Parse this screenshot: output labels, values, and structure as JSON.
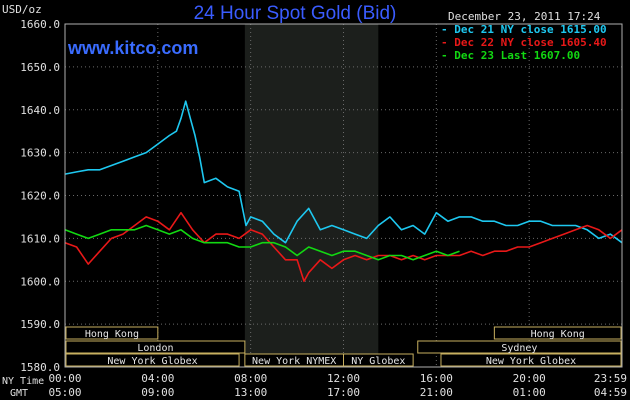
{
  "chart_data": {
    "type": "line",
    "title": "24 Hour Spot Gold (Bid)",
    "ylabel": "USD/oz",
    "date_label": "December 23, 2011 17:24",
    "brand": "www.kitco.com",
    "ylim": [
      1580,
      1660
    ],
    "yticks": [
      "1660.0",
      "1650.0",
      "1640.0",
      "1630.0",
      "1620.0",
      "1610.0",
      "1600.0",
      "1590.0",
      "1580.0"
    ],
    "ytick_values": [
      1660,
      1650,
      1640,
      1630,
      1620,
      1610,
      1600,
      1590,
      1580
    ],
    "xlim": [
      0,
      24
    ],
    "x_ny_label": "NY Time",
    "x_gmt_label": "GMT",
    "x_ny_ticks": [
      "00:00",
      "04:00",
      "08:00",
      "12:00",
      "16:00",
      "20:00",
      "23:59"
    ],
    "x_gmt_ticks": [
      "05:00",
      "09:00",
      "13:00",
      "17:00",
      "21:00",
      "01:00",
      "04:59"
    ],
    "x_tick_hours": [
      0,
      4,
      8,
      12,
      16,
      20,
      24
    ],
    "nymex_session": [
      7.75,
      13.5
    ],
    "markets": [
      {
        "label": "Hong Kong",
        "row": 1,
        "start": 0,
        "end": 4
      },
      {
        "label": "London",
        "row": 2,
        "start": 0,
        "end": 7.75
      },
      {
        "label": "New York Globex",
        "row": 3,
        "start": 0,
        "end": 7.5
      },
      {
        "label": "New York NYMEX",
        "row": 3,
        "start": 7.75,
        "end": 12
      },
      {
        "label": "NY Globex",
        "row": 3,
        "start": 12,
        "end": 15
      },
      {
        "label": "Sydney",
        "row": 2,
        "start": 15.2,
        "end": 24
      },
      {
        "label": "Hong Kong",
        "row": 1,
        "start": 18.5,
        "end": 24
      },
      {
        "label": "New York Globex",
        "row": 3,
        "start": 16.2,
        "end": 24
      }
    ],
    "series": [
      {
        "name": "Dec 21 NY close 1615.00",
        "color": "#1ec8f0",
        "x": [
          0,
          0.5,
          1,
          1.5,
          2,
          2.5,
          3,
          3.5,
          4,
          4.5,
          4.8,
          5,
          5.2,
          5.4,
          5.6,
          5.8,
          6,
          6.5,
          7,
          7.5,
          7.8,
          8,
          8.5,
          9,
          9.5,
          10,
          10.5,
          11,
          11.5,
          12,
          12.5,
          13,
          13.5,
          14,
          14.5,
          15,
          15.5,
          16,
          16.5,
          17,
          17.5,
          18,
          18.5,
          19,
          19.5,
          20,
          20.5,
          21,
          21.5,
          22,
          22.5,
          23,
          23.5,
          24
        ],
        "values": [
          1625,
          1625.5,
          1626,
          1626,
          1627,
          1628,
          1629,
          1630,
          1632,
          1634,
          1635,
          1638,
          1642,
          1638,
          1634,
          1629,
          1623,
          1624,
          1622,
          1621,
          1613,
          1615,
          1614,
          1611,
          1609,
          1614,
          1617,
          1612,
          1613,
          1612,
          1611,
          1610,
          1613,
          1615,
          1612,
          1613,
          1611,
          1616,
          1614,
          1615,
          1615,
          1614,
          1614,
          1613,
          1613,
          1614,
          1614,
          1613,
          1613,
          1613,
          1612,
          1610,
          1611,
          1609
        ]
      },
      {
        "name": "Dec 22 NY close 1605.40",
        "color": "#e81818",
        "x": [
          0,
          0.5,
          1,
          1.5,
          2,
          2.5,
          3,
          3.5,
          4,
          4.5,
          5,
          5.5,
          6,
          6.5,
          7,
          7.5,
          8,
          8.5,
          9,
          9.5,
          10,
          10.3,
          10.5,
          11,
          11.5,
          12,
          12.5,
          13,
          13.5,
          14,
          14.5,
          15,
          15.5,
          16,
          16.5,
          17,
          17.5,
          18,
          18.5,
          19,
          19.5,
          20,
          20.5,
          21,
          21.5,
          22,
          22.5,
          23,
          23.5,
          24
        ],
        "values": [
          1609,
          1608,
          1604,
          1607,
          1610,
          1611,
          1613,
          1615,
          1614,
          1612,
          1616,
          1612,
          1609,
          1611,
          1611,
          1610,
          1612,
          1611,
          1608,
          1605,
          1605,
          1600,
          1602,
          1605,
          1603,
          1605,
          1606,
          1605,
          1606,
          1606,
          1605,
          1606,
          1605,
          1606,
          1606,
          1606,
          1607,
          1606,
          1607,
          1607,
          1608,
          1608,
          1609,
          1610,
          1611,
          1612,
          1613,
          1612,
          1610,
          1612
        ]
      },
      {
        "name": "Dec 23 Last 1607.00",
        "color": "#12d812",
        "x": [
          0,
          0.5,
          1,
          1.5,
          2,
          2.5,
          3,
          3.5,
          4,
          4.5,
          5,
          5.5,
          6,
          6.5,
          7,
          7.5,
          8,
          8.5,
          9,
          9.5,
          10,
          10.5,
          11,
          11.5,
          12,
          12.5,
          13,
          13.5,
          14,
          14.5,
          15,
          15.5,
          16,
          16.5,
          17
        ],
        "values": [
          1612,
          1611,
          1610,
          1611,
          1612,
          1612,
          1612,
          1613,
          1612,
          1611,
          1612,
          1610,
          1609,
          1609,
          1609,
          1608,
          1608,
          1609,
          1609,
          1608,
          1606,
          1608,
          1607,
          1606,
          1607,
          1607,
          1606,
          1605,
          1606,
          1606,
          1605,
          1606,
          1607,
          1606,
          1607
        ]
      }
    ]
  }
}
